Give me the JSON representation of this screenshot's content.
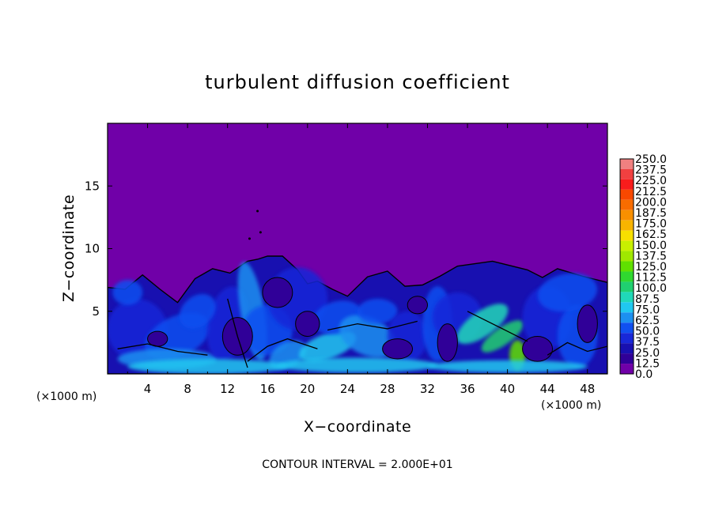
{
  "chart_data": {
    "type": "heatmap",
    "title": "turbulent diffusion coefficient",
    "xlabel": "X−coordinate",
    "ylabel": "Z−coordinate",
    "x_unit_left": "(×1000 m)",
    "x_unit_right": "(×1000 m)",
    "footer": "CONTOUR INTERVAL = 2.000E+01",
    "xlim": [
      0,
      50
    ],
    "ylim": [
      0,
      20
    ],
    "x_ticks": [
      4,
      8,
      12,
      16,
      20,
      24,
      28,
      32,
      36,
      40,
      44,
      48
    ],
    "y_ticks": [
      5,
      10,
      15
    ],
    "colorbar_labels": [
      "250.0",
      "237.5",
      "225.0",
      "212.5",
      "200.0",
      "187.5",
      "175.0",
      "162.5",
      "150.0",
      "137.5",
      "125.0",
      "112.5",
      "100.0",
      "87.5",
      "75.0",
      "62.5",
      "50.0",
      "37.5",
      "25.0",
      "12.5",
      "0.0"
    ],
    "colorbar_colors": [
      "#f08080",
      "#f04040",
      "#f81c1c",
      "#f84800",
      "#f86c00",
      "#f89000",
      "#f8b400",
      "#f8e000",
      "#c8f000",
      "#a0e800",
      "#60e000",
      "#30d830",
      "#20d070",
      "#20d8b8",
      "#20c8f0",
      "#1c90f0",
      "#1050f0",
      "#1828d8",
      "#1810b0",
      "#300098",
      "#7000a8"
    ],
    "background_color": "#7000a8",
    "legend_placement": "right",
    "grid": false,
    "field_summary": {
      "upper_region_value": 0,
      "boundary_layer_top_z": [
        7.2,
        7.5,
        6.0,
        8.0,
        9.3,
        9.0,
        8.6,
        7.0,
        6.5,
        7.8,
        7.4,
        8.2,
        8.6,
        8.0,
        7.6
      ],
      "boundary_layer_x": [
        0,
        3.5,
        7,
        10.5,
        14,
        16,
        19,
        21,
        24,
        28,
        31.5,
        35,
        42,
        45,
        50
      ]
    }
  }
}
